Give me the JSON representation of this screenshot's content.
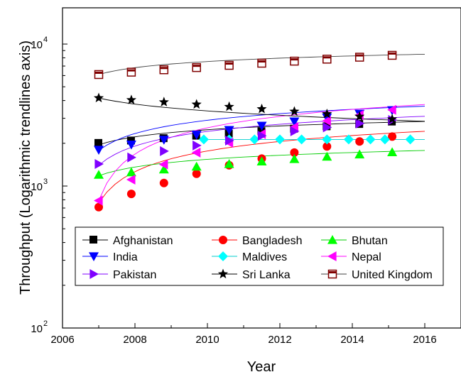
{
  "chart_data": {
    "type": "line",
    "title": "",
    "xlabel": "Year",
    "ylabel": "Throughput (Logarithmic trendlines axis)",
    "xlim": [
      2006,
      2017
    ],
    "ylim": [
      100,
      18000
    ],
    "yscale": "log",
    "x_ticks": [
      "2006",
      "2008",
      "2010",
      "2012",
      "2014",
      "2016"
    ],
    "x_tick_values": [
      2006,
      2008,
      2010,
      2012,
      2014,
      2016
    ],
    "y_ticks": [
      "10",
      "10",
      "10"
    ],
    "y_tick_exponents": [
      "2",
      "3",
      "4"
    ],
    "y_tick_values": [
      100,
      1000,
      10000
    ],
    "grid": false,
    "legend_position": "bottom-center",
    "series": [
      {
        "name": "Afghanistan",
        "marker": "square",
        "color": "#000000",
        "line_color": "#000000",
        "x": [
          2007,
          2007.9,
          2008.8,
          2009.7,
          2010.6,
          2011.5,
          2012.4,
          2013.3,
          2014.2,
          2015.1
        ],
        "y": [
          2000,
          2080,
          2160,
          2250,
          2330,
          2420,
          2520,
          2620,
          2720,
          2830
        ],
        "trend_x": [
          2007,
          2016
        ],
        "trend_y": [
          1950,
          2850
        ]
      },
      {
        "name": "Bangladesh",
        "marker": "circle",
        "color": "#ff0000",
        "line_color": "#ff0000",
        "x": [
          2007,
          2007.9,
          2008.8,
          2009.7,
          2010.6,
          2011.5,
          2012.4,
          2013.3,
          2014.2,
          2015.1
        ],
        "y": [
          710,
          880,
          1050,
          1220,
          1400,
          1560,
          1720,
          1900,
          2060,
          2230
        ],
        "trend_x": [
          2007,
          2016
        ],
        "trend_y": [
          760,
          2430
        ]
      },
      {
        "name": "Bhutan",
        "marker": "triangle-up",
        "color": "#00ff00",
        "line_color": "#00cc00",
        "x": [
          2007,
          2007.9,
          2008.8,
          2009.7,
          2010.6,
          2011.5,
          2012.4,
          2013.3,
          2014.2,
          2015.1
        ],
        "y": [
          1200,
          1250,
          1310,
          1370,
          1430,
          1490,
          1550,
          1610,
          1670,
          1730
        ],
        "trend_x": [
          2007,
          2016
        ],
        "trend_y": [
          1180,
          1780
        ]
      },
      {
        "name": "India",
        "marker": "triangle-down",
        "color": "#0000ff",
        "line_color": "#0000ff",
        "x": [
          2007,
          2007.9,
          2008.8,
          2009.7,
          2010.6,
          2011.5,
          2012.4,
          2013.3,
          2014.2,
          2015.1
        ],
        "y": [
          1800,
          1960,
          2120,
          2300,
          2480,
          2660,
          2850,
          3040,
          3230,
          3420
        ],
        "trend_x": [
          2007,
          2016
        ],
        "trend_y": [
          1780,
          3650
        ]
      },
      {
        "name": "Maldives",
        "marker": "diamond",
        "color": "#00ffff",
        "line_color": "#00cccc",
        "x": [
          2009.9,
          2010.6,
          2011.3,
          2012,
          2012.6,
          2013.3,
          2013.9,
          2014.5,
          2014.9,
          2015.6
        ],
        "y": [
          2130,
          2130,
          2130,
          2130,
          2130,
          2130,
          2130,
          2130,
          2130,
          2130
        ],
        "trend_x": [
          2009.9,
          2016
        ],
        "trend_y": [
          2130,
          2130
        ]
      },
      {
        "name": "Nepal",
        "marker": "triangle-left",
        "color": "#ff00ff",
        "line_color": "#ff00ff",
        "x": [
          2007,
          2007.9,
          2008.8,
          2009.7,
          2010.6,
          2011.5,
          2012.4,
          2013.3,
          2014.2,
          2015.1
        ],
        "y": [
          790,
          1110,
          1420,
          1720,
          2020,
          2320,
          2600,
          2880,
          3160,
          3440
        ],
        "trend_x": [
          2007,
          2016
        ],
        "trend_y": [
          790,
          3750
        ]
      },
      {
        "name": "Pakistan",
        "marker": "triangle-right",
        "color": "#8000ff",
        "line_color": "#8000ff",
        "x": [
          2007,
          2007.9,
          2008.8,
          2009.7,
          2010.6,
          2011.5,
          2012.4,
          2013.3,
          2014.2,
          2015.1
        ],
        "y": [
          1430,
          1590,
          1760,
          1930,
          2090,
          2260,
          2430,
          2590,
          2760,
          2920
        ],
        "trend_x": [
          2007,
          2016
        ],
        "trend_y": [
          1400,
          3100
        ]
      },
      {
        "name": "Sri Lanka",
        "marker": "star",
        "color": "#000000",
        "line_color": "#000000",
        "x": [
          2007,
          2007.9,
          2008.8,
          2009.7,
          2010.6,
          2011.5,
          2012.4,
          2013.3,
          2014.2,
          2015.1
        ],
        "y": [
          4170,
          4040,
          3900,
          3760,
          3620,
          3490,
          3350,
          3220,
          3090,
          2960
        ],
        "trend_x": [
          2007,
          2016
        ],
        "trend_y": [
          4170,
          2860
        ]
      },
      {
        "name": "United Kingdom",
        "marker": "square-open",
        "color": "#800000",
        "line_color": "#404040",
        "x": [
          2007,
          2007.9,
          2008.8,
          2009.7,
          2010.6,
          2011.5,
          2012.4,
          2013.3,
          2014.2,
          2015.1
        ],
        "y": [
          6100,
          6340,
          6590,
          6830,
          7080,
          7330,
          7580,
          7830,
          8080,
          8330
        ],
        "trend_x": [
          2007,
          2016
        ],
        "trend_y": [
          6100,
          8480
        ]
      }
    ]
  }
}
